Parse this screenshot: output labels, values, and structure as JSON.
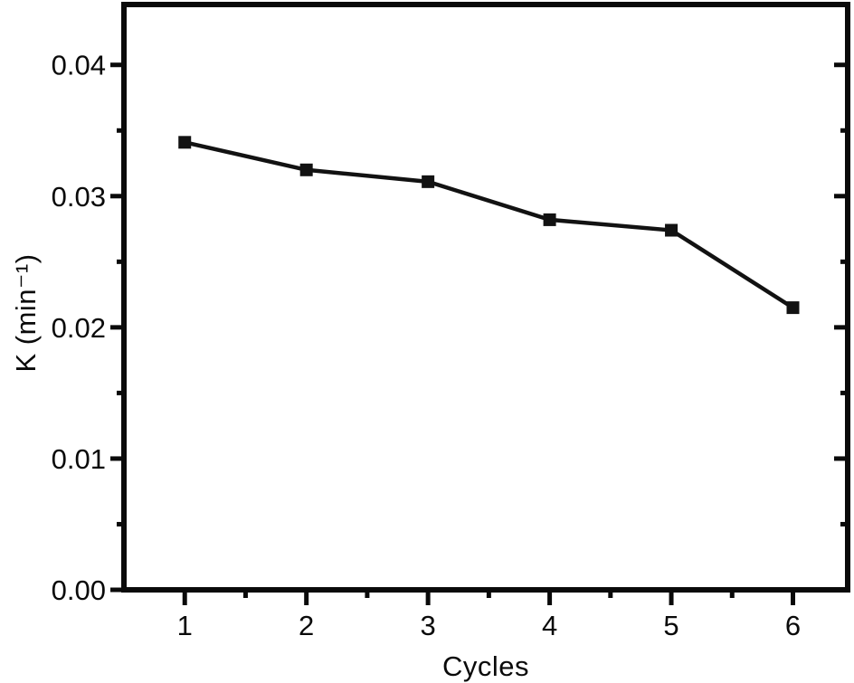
{
  "figure": {
    "background": "#ffffff",
    "frame_color": "#0a0a0a",
    "tick_color": "#0a0a0a",
    "text_color": "#0a0a0a",
    "series_color": "#121212"
  },
  "chart_data": {
    "type": "line",
    "title": "",
    "xlabel": "Cycles",
    "ylabel": "K (min⁻¹)",
    "x": [
      1,
      2,
      3,
      4,
      5,
      6
    ],
    "series": [
      {
        "name": "K",
        "values": [
          0.0341,
          0.032,
          0.0311,
          0.0282,
          0.0274,
          0.0215
        ],
        "marker": "filled-square"
      }
    ],
    "xlim": [
      0.5,
      6.45
    ],
    "ylim": [
      0,
      0.0446
    ],
    "x_ticks": [
      1,
      2,
      3,
      4,
      5,
      6
    ],
    "x_tick_labels": [
      "1",
      "2",
      "3",
      "4",
      "5",
      "6"
    ],
    "x_minor_ticks": [
      1.5,
      2.5,
      3.5,
      4.5,
      5.5
    ],
    "y_ticks": [
      0.0,
      0.01,
      0.02,
      0.03,
      0.04
    ],
    "y_tick_labels": [
      "0.00",
      "0.01",
      "0.02",
      "0.03",
      "0.04"
    ],
    "y_minor_ticks": [
      0.005,
      0.015,
      0.025,
      0.035
    ],
    "grid": false,
    "legend": "none",
    "tick_style": {
      "left": "out",
      "bottom": "out",
      "right": "in",
      "top": "none"
    }
  }
}
